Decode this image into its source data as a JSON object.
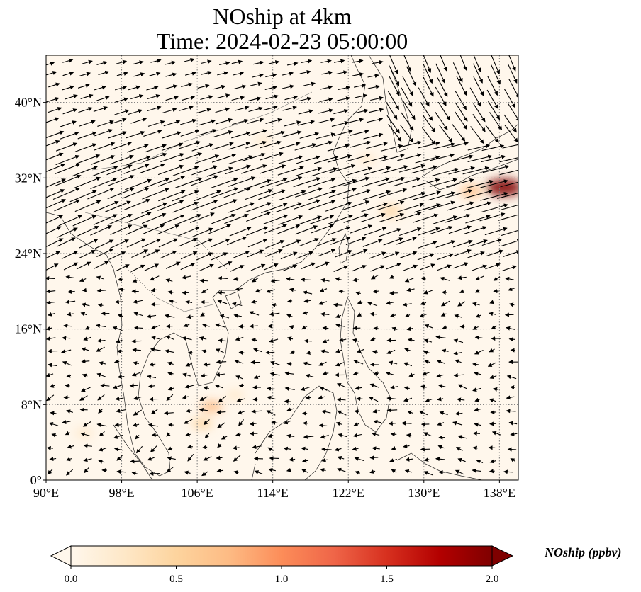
{
  "title": {
    "line1": "NOship at 4km",
    "line2": "Time: 2024-02-23 05:00:00"
  },
  "map": {
    "lon_range": [
      90,
      140
    ],
    "lat_range": [
      0,
      45
    ],
    "lon_ticks": [
      "90°E",
      "98°E",
      "106°E",
      "114°E",
      "122°E",
      "130°E",
      "138°E"
    ],
    "lon_tick_values": [
      90,
      98,
      106,
      114,
      122,
      130,
      138
    ],
    "lat_ticks": [
      "0°",
      "8°N",
      "16°N",
      "24°N",
      "32°N",
      "40°N"
    ],
    "lat_tick_values": [
      0,
      8,
      16,
      24,
      32,
      40
    ],
    "gridlines": true,
    "hotspots": [
      {
        "lon": 138.5,
        "lat": 31.0,
        "value": 2.0
      },
      {
        "lon": 135.0,
        "lat": 30.6,
        "value": 0.7
      },
      {
        "lon": 126.5,
        "lat": 28.5,
        "value": 0.55
      },
      {
        "lon": 107.5,
        "lat": 7.8,
        "value": 0.7
      },
      {
        "lon": 106.5,
        "lat": 6.0,
        "value": 0.55
      },
      {
        "lon": 110.0,
        "lat": 9.0,
        "value": 0.3
      },
      {
        "lon": 94.0,
        "lat": 5.0,
        "value": 0.3
      },
      {
        "lon": 113.0,
        "lat": 36.0,
        "value": 0.2
      },
      {
        "lon": 124.0,
        "lat": 34.0,
        "value": 0.2
      }
    ]
  },
  "colorbar": {
    "label": "NOship (ppbv)",
    "range": [
      0.0,
      2.0
    ],
    "ticks": [
      "0.0",
      "0.5",
      "1.0",
      "1.5",
      "2.0"
    ],
    "tick_values": [
      0.0,
      0.5,
      1.0,
      1.5,
      2.0
    ],
    "extend": "both",
    "colormap": "OrRd",
    "colors": [
      "#fff7ec",
      "#fee8c8",
      "#fdd49e",
      "#fdbb84",
      "#fc8d59",
      "#ef6548",
      "#d7301f",
      "#b30000",
      "#7f0000"
    ]
  }
}
